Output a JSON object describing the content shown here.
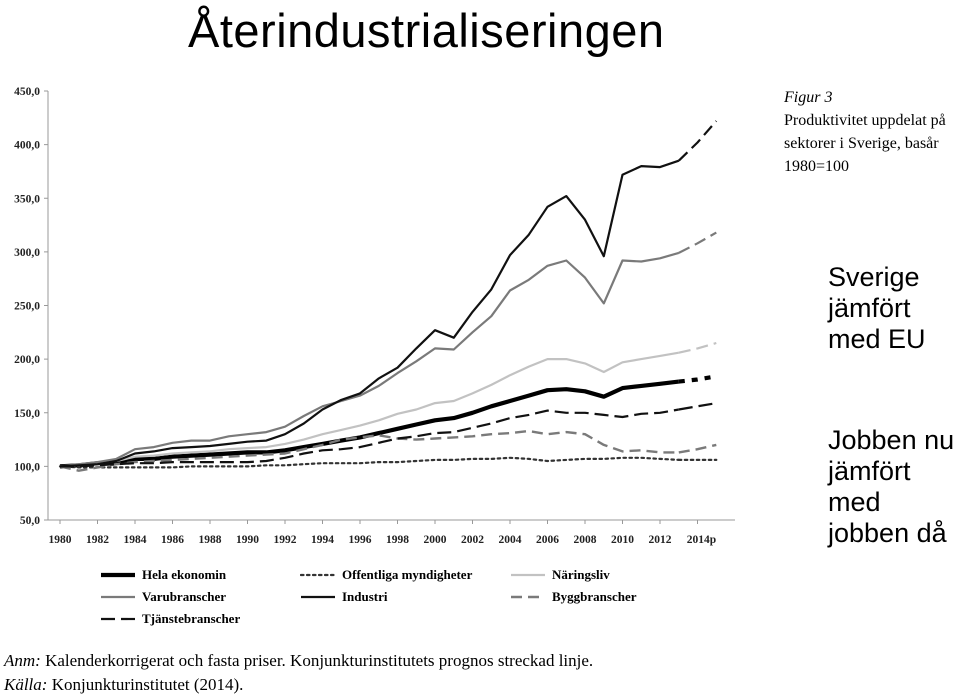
{
  "slide": {
    "title": "Återindustrialiseringen",
    "side_text_1": "Sverige jämfört med EU",
    "side_text_2": "Jobben nu jämfört med jobben då"
  },
  "caption": {
    "figure_label": "Figur 3",
    "text": "Produktivitet uppdelat på sektorer i Sverige, basår 1980=100"
  },
  "footnote": {
    "note_label": "Anm:",
    "note_text": "Kalenderkorrigerat och fasta priser. Konjunkturinstitutets prognos streckad linje.",
    "source_label": "Källa:",
    "source_text": "Konjunkturinstitutet (2014)."
  },
  "chart_data": {
    "type": "line",
    "ylim": [
      50,
      450
    ],
    "y_ticks": [
      "50,0",
      "100,0",
      "150,0",
      "200,0",
      "250,0",
      "300,0",
      "350,0",
      "400,0",
      "450,0"
    ],
    "x_tick_labels": [
      "1980",
      "1982",
      "1984",
      "1986",
      "1988",
      "1990",
      "1992",
      "1994",
      "1996",
      "1998",
      "2000",
      "2002",
      "2004",
      "2006",
      "2008",
      "2010",
      "2012",
      "2014p"
    ],
    "x": [
      1980,
      1981,
      1982,
      1983,
      1984,
      1985,
      1986,
      1987,
      1988,
      1989,
      1990,
      1991,
      1992,
      1993,
      1994,
      1995,
      1996,
      1997,
      1998,
      1999,
      2000,
      2001,
      2002,
      2003,
      2004,
      2005,
      2006,
      2007,
      2008,
      2009,
      2010,
      2011,
      2012,
      2013,
      2014,
      2015
    ],
    "forecast_start": 2013,
    "series": [
      {
        "name": "Hela ekonomin",
        "color": "#000000",
        "style": "solid-thick",
        "values": [
          100,
          101,
          103,
          104,
          107,
          107,
          109,
          110,
          111,
          112,
          113,
          113,
          115,
          118,
          121,
          124,
          127,
          131,
          135,
          139,
          143,
          145,
          150,
          156,
          161,
          166,
          171,
          172,
          170,
          165,
          173,
          175,
          177,
          179,
          181,
          184
        ]
      },
      {
        "name": "Offentliga myndigheter",
        "color": "#333333",
        "style": "dotted",
        "values": [
          100,
          99,
          99,
          99,
          99,
          99,
          99,
          100,
          100,
          100,
          100,
          101,
          101,
          102,
          103,
          103,
          103,
          104,
          104,
          105,
          106,
          106,
          107,
          107,
          108,
          107,
          105,
          106,
          107,
          107,
          108,
          108,
          107,
          106,
          106,
          106
        ]
      },
      {
        "name": "Näringsliv",
        "color": "#c2c2c2",
        "style": "solid",
        "values": [
          100,
          101,
          103,
          105,
          109,
          110,
          112,
          113,
          114,
          116,
          117,
          118,
          121,
          125,
          130,
          134,
          138,
          143,
          149,
          153,
          159,
          161,
          168,
          176,
          185,
          193,
          200,
          200,
          196,
          188,
          197,
          200,
          203,
          206,
          210,
          215
        ]
      },
      {
        "name": "Varubranscher",
        "color": "#7a7a7a",
        "style": "solid",
        "values": [
          100,
          102,
          104,
          107,
          116,
          118,
          122,
          124,
          124,
          128,
          130,
          132,
          137,
          147,
          156,
          161,
          166,
          175,
          187,
          198,
          210,
          209,
          225,
          240,
          264,
          274,
          287,
          292,
          276,
          252,
          292,
          291,
          294,
          299,
          308,
          318
        ]
      },
      {
        "name": "Industri",
        "color": "#111111",
        "style": "solid",
        "values": [
          100,
          101,
          102,
          105,
          112,
          114,
          117,
          118,
          119,
          121,
          123,
          124,
          130,
          140,
          153,
          162,
          168,
          182,
          192,
          210,
          227,
          220,
          244,
          265,
          297,
          316,
          342,
          352,
          330,
          296,
          372,
          380,
          379,
          385,
          402,
          422
        ]
      },
      {
        "name": "Byggbranscher",
        "color": "#7a7a7a",
        "style": "dashed",
        "values": [
          100,
          96,
          99,
          102,
          104,
          105,
          106,
          107,
          108,
          109,
          110,
          111,
          112,
          116,
          120,
          125,
          127,
          129,
          126,
          125,
          126,
          127,
          128,
          130,
          131,
          133,
          130,
          132,
          130,
          120,
          114,
          115,
          113,
          113,
          116,
          120
        ]
      },
      {
        "name": "Tjänstebranscher",
        "color": "#111111",
        "style": "dashed-long",
        "values": [
          100,
          100,
          101,
          102,
          103,
          103,
          104,
          104,
          104,
          104,
          104,
          105,
          108,
          112,
          115,
          116,
          118,
          122,
          126,
          128,
          131,
          132,
          136,
          140,
          145,
          148,
          152,
          150,
          150,
          148,
          146,
          149,
          150,
          153,
          156,
          159
        ]
      }
    ]
  },
  "legend": [
    {
      "name": "Hela ekonomin",
      "style": "solid-thick",
      "color": "#000000"
    },
    {
      "name": "Offentliga myndigheter",
      "style": "dotted",
      "color": "#333333"
    },
    {
      "name": "Näringsliv",
      "style": "solid",
      "color": "#c2c2c2"
    },
    {
      "name": "Varubranscher",
      "style": "solid",
      "color": "#7a7a7a"
    },
    {
      "name": "Industri",
      "style": "solid",
      "color": "#111111"
    },
    {
      "name": "Byggbranscher",
      "style": "dashed",
      "color": "#7a7a7a"
    },
    {
      "name": "Tjänstebranscher",
      "style": "dashed-long",
      "color": "#111111"
    }
  ]
}
